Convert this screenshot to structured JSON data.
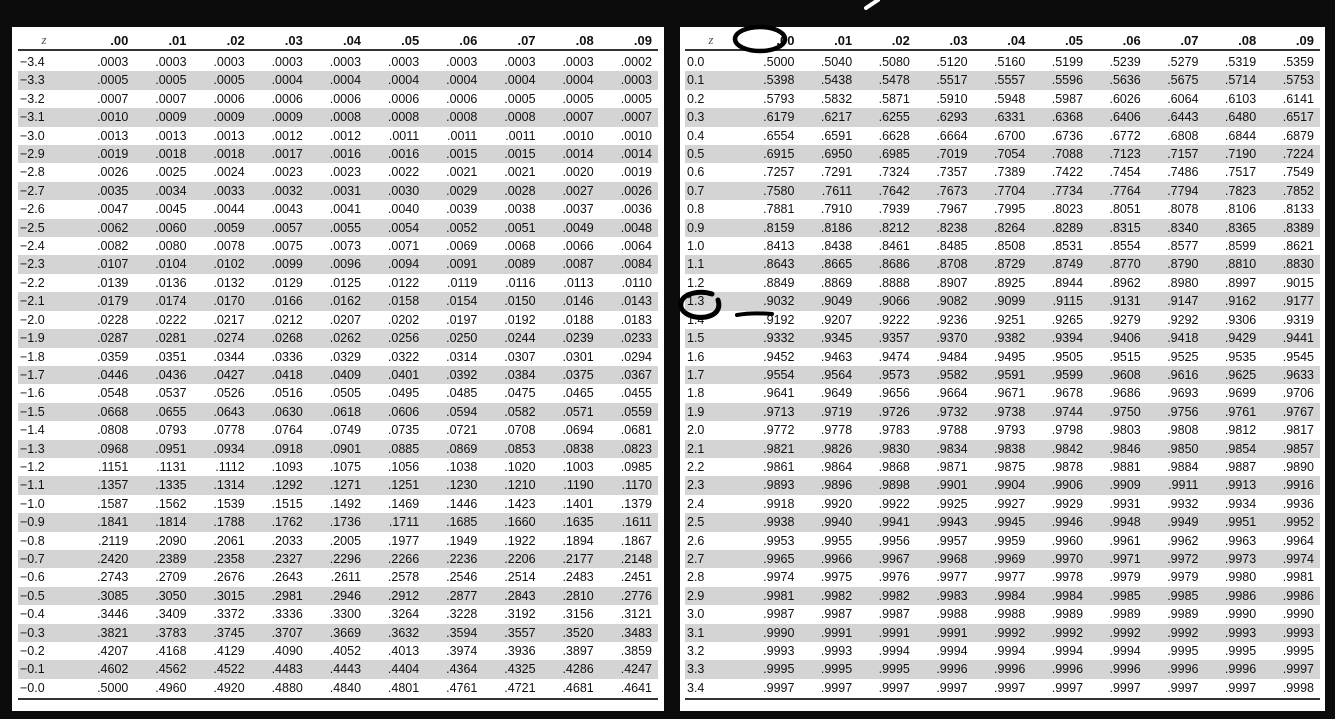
{
  "columns": [
    "z",
    ".00",
    ".01",
    ".02",
    ".03",
    ".04",
    ".05",
    ".06",
    ".07",
    ".08",
    ".09"
  ],
  "negative_table": [
    [
      "−3.4",
      ".0003",
      ".0003",
      ".0003",
      ".0003",
      ".0003",
      ".0003",
      ".0003",
      ".0003",
      ".0003",
      ".0002"
    ],
    [
      "−3.3",
      ".0005",
      ".0005",
      ".0005",
      ".0004",
      ".0004",
      ".0004",
      ".0004",
      ".0004",
      ".0004",
      ".0003"
    ],
    [
      "−3.2",
      ".0007",
      ".0007",
      ".0006",
      ".0006",
      ".0006",
      ".0006",
      ".0006",
      ".0005",
      ".0005",
      ".0005"
    ],
    [
      "−3.1",
      ".0010",
      ".0009",
      ".0009",
      ".0009",
      ".0008",
      ".0008",
      ".0008",
      ".0008",
      ".0007",
      ".0007"
    ],
    [
      "−3.0",
      ".0013",
      ".0013",
      ".0013",
      ".0012",
      ".0012",
      ".0011",
      ".0011",
      ".0011",
      ".0010",
      ".0010"
    ],
    [
      "−2.9",
      ".0019",
      ".0018",
      ".0018",
      ".0017",
      ".0016",
      ".0016",
      ".0015",
      ".0015",
      ".0014",
      ".0014"
    ],
    [
      "−2.8",
      ".0026",
      ".0025",
      ".0024",
      ".0023",
      ".0023",
      ".0022",
      ".0021",
      ".0021",
      ".0020",
      ".0019"
    ],
    [
      "−2.7",
      ".0035",
      ".0034",
      ".0033",
      ".0032",
      ".0031",
      ".0030",
      ".0029",
      ".0028",
      ".0027",
      ".0026"
    ],
    [
      "−2.6",
      ".0047",
      ".0045",
      ".0044",
      ".0043",
      ".0041",
      ".0040",
      ".0039",
      ".0038",
      ".0037",
      ".0036"
    ],
    [
      "−2.5",
      ".0062",
      ".0060",
      ".0059",
      ".0057",
      ".0055",
      ".0054",
      ".0052",
      ".0051",
      ".0049",
      ".0048"
    ],
    [
      "−2.4",
      ".0082",
      ".0080",
      ".0078",
      ".0075",
      ".0073",
      ".0071",
      ".0069",
      ".0068",
      ".0066",
      ".0064"
    ],
    [
      "−2.3",
      ".0107",
      ".0104",
      ".0102",
      ".0099",
      ".0096",
      ".0094",
      ".0091",
      ".0089",
      ".0087",
      ".0084"
    ],
    [
      "−2.2",
      ".0139",
      ".0136",
      ".0132",
      ".0129",
      ".0125",
      ".0122",
      ".0119",
      ".0116",
      ".0113",
      ".0110"
    ],
    [
      "−2.1",
      ".0179",
      ".0174",
      ".0170",
      ".0166",
      ".0162",
      ".0158",
      ".0154",
      ".0150",
      ".0146",
      ".0143"
    ],
    [
      "−2.0",
      ".0228",
      ".0222",
      ".0217",
      ".0212",
      ".0207",
      ".0202",
      ".0197",
      ".0192",
      ".0188",
      ".0183"
    ],
    [
      "−1.9",
      ".0287",
      ".0281",
      ".0274",
      ".0268",
      ".0262",
      ".0256",
      ".0250",
      ".0244",
      ".0239",
      ".0233"
    ],
    [
      "−1.8",
      ".0359",
      ".0351",
      ".0344",
      ".0336",
      ".0329",
      ".0322",
      ".0314",
      ".0307",
      ".0301",
      ".0294"
    ],
    [
      "−1.7",
      ".0446",
      ".0436",
      ".0427",
      ".0418",
      ".0409",
      ".0401",
      ".0392",
      ".0384",
      ".0375",
      ".0367"
    ],
    [
      "−1.6",
      ".0548",
      ".0537",
      ".0526",
      ".0516",
      ".0505",
      ".0495",
      ".0485",
      ".0475",
      ".0465",
      ".0455"
    ],
    [
      "−1.5",
      ".0668",
      ".0655",
      ".0643",
      ".0630",
      ".0618",
      ".0606",
      ".0594",
      ".0582",
      ".0571",
      ".0559"
    ],
    [
      "−1.4",
      ".0808",
      ".0793",
      ".0778",
      ".0764",
      ".0749",
      ".0735",
      ".0721",
      ".0708",
      ".0694",
      ".0681"
    ],
    [
      "−1.3",
      ".0968",
      ".0951",
      ".0934",
      ".0918",
      ".0901",
      ".0885",
      ".0869",
      ".0853",
      ".0838",
      ".0823"
    ],
    [
      "−1.2",
      ".1151",
      ".1131",
      ".1112",
      ".1093",
      ".1075",
      ".1056",
      ".1038",
      ".1020",
      ".1003",
      ".0985"
    ],
    [
      "−1.1",
      ".1357",
      ".1335",
      ".1314",
      ".1292",
      ".1271",
      ".1251",
      ".1230",
      ".1210",
      ".1190",
      ".1170"
    ],
    [
      "−1.0",
      ".1587",
      ".1562",
      ".1539",
      ".1515",
      ".1492",
      ".1469",
      ".1446",
      ".1423",
      ".1401",
      ".1379"
    ],
    [
      "−0.9",
      ".1841",
      ".1814",
      ".1788",
      ".1762",
      ".1736",
      ".1711",
      ".1685",
      ".1660",
      ".1635",
      ".1611"
    ],
    [
      "−0.8",
      ".2119",
      ".2090",
      ".2061",
      ".2033",
      ".2005",
      ".1977",
      ".1949",
      ".1922",
      ".1894",
      ".1867"
    ],
    [
      "−0.7",
      ".2420",
      ".2389",
      ".2358",
      ".2327",
      ".2296",
      ".2266",
      ".2236",
      ".2206",
      ".2177",
      ".2148"
    ],
    [
      "−0.6",
      ".2743",
      ".2709",
      ".2676",
      ".2643",
      ".2611",
      ".2578",
      ".2546",
      ".2514",
      ".2483",
      ".2451"
    ],
    [
      "−0.5",
      ".3085",
      ".3050",
      ".3015",
      ".2981",
      ".2946",
      ".2912",
      ".2877",
      ".2843",
      ".2810",
      ".2776"
    ],
    [
      "−0.4",
      ".3446",
      ".3409",
      ".3372",
      ".3336",
      ".3300",
      ".3264",
      ".3228",
      ".3192",
      ".3156",
      ".3121"
    ],
    [
      "−0.3",
      ".3821",
      ".3783",
      ".3745",
      ".3707",
      ".3669",
      ".3632",
      ".3594",
      ".3557",
      ".3520",
      ".3483"
    ],
    [
      "−0.2",
      ".4207",
      ".4168",
      ".4129",
      ".4090",
      ".4052",
      ".4013",
      ".3974",
      ".3936",
      ".3897",
      ".3859"
    ],
    [
      "−0.1",
      ".4602",
      ".4562",
      ".4522",
      ".4483",
      ".4443",
      ".4404",
      ".4364",
      ".4325",
      ".4286",
      ".4247"
    ],
    [
      "−0.0",
      ".5000",
      ".4960",
      ".4920",
      ".4880",
      ".4840",
      ".4801",
      ".4761",
      ".4721",
      ".4681",
      ".4641"
    ]
  ],
  "positive_table": [
    [
      "0.0",
      ".5000",
      ".5040",
      ".5080",
      ".5120",
      ".5160",
      ".5199",
      ".5239",
      ".5279",
      ".5319",
      ".5359"
    ],
    [
      "0.1",
      ".5398",
      ".5438",
      ".5478",
      ".5517",
      ".5557",
      ".5596",
      ".5636",
      ".5675",
      ".5714",
      ".5753"
    ],
    [
      "0.2",
      ".5793",
      ".5832",
      ".5871",
      ".5910",
      ".5948",
      ".5987",
      ".6026",
      ".6064",
      ".6103",
      ".6141"
    ],
    [
      "0.3",
      ".6179",
      ".6217",
      ".6255",
      ".6293",
      ".6331",
      ".6368",
      ".6406",
      ".6443",
      ".6480",
      ".6517"
    ],
    [
      "0.4",
      ".6554",
      ".6591",
      ".6628",
      ".6664",
      ".6700",
      ".6736",
      ".6772",
      ".6808",
      ".6844",
      ".6879"
    ],
    [
      "0.5",
      ".6915",
      ".6950",
      ".6985",
      ".7019",
      ".7054",
      ".7088",
      ".7123",
      ".7157",
      ".7190",
      ".7224"
    ],
    [
      "0.6",
      ".7257",
      ".7291",
      ".7324",
      ".7357",
      ".7389",
      ".7422",
      ".7454",
      ".7486",
      ".7517",
      ".7549"
    ],
    [
      "0.7",
      ".7580",
      ".7611",
      ".7642",
      ".7673",
      ".7704",
      ".7734",
      ".7764",
      ".7794",
      ".7823",
      ".7852"
    ],
    [
      "0.8",
      ".7881",
      ".7910",
      ".7939",
      ".7967",
      ".7995",
      ".8023",
      ".8051",
      ".8078",
      ".8106",
      ".8133"
    ],
    [
      "0.9",
      ".8159",
      ".8186",
      ".8212",
      ".8238",
      ".8264",
      ".8289",
      ".8315",
      ".8340",
      ".8365",
      ".8389"
    ],
    [
      "1.0",
      ".8413",
      ".8438",
      ".8461",
      ".8485",
      ".8508",
      ".8531",
      ".8554",
      ".8577",
      ".8599",
      ".8621"
    ],
    [
      "1.1",
      ".8643",
      ".8665",
      ".8686",
      ".8708",
      ".8729",
      ".8749",
      ".8770",
      ".8790",
      ".8810",
      ".8830"
    ],
    [
      "1.2",
      ".8849",
      ".8869",
      ".8888",
      ".8907",
      ".8925",
      ".8944",
      ".8962",
      ".8980",
      ".8997",
      ".9015"
    ],
    [
      "1.3",
      ".9032",
      ".9049",
      ".9066",
      ".9082",
      ".9099",
      ".9115",
      ".9131",
      ".9147",
      ".9162",
      ".9177"
    ],
    [
      "1.4",
      ".9192",
      ".9207",
      ".9222",
      ".9236",
      ".9251",
      ".9265",
      ".9279",
      ".9292",
      ".9306",
      ".9319"
    ],
    [
      "1.5",
      ".9332",
      ".9345",
      ".9357",
      ".9370",
      ".9382",
      ".9394",
      ".9406",
      ".9418",
      ".9429",
      ".9441"
    ],
    [
      "1.6",
      ".9452",
      ".9463",
      ".9474",
      ".9484",
      ".9495",
      ".9505",
      ".9515",
      ".9525",
      ".9535",
      ".9545"
    ],
    [
      "1.7",
      ".9554",
      ".9564",
      ".9573",
      ".9582",
      ".9591",
      ".9599",
      ".9608",
      ".9616",
      ".9625",
      ".9633"
    ],
    [
      "1.8",
      ".9641",
      ".9649",
      ".9656",
      ".9664",
      ".9671",
      ".9678",
      ".9686",
      ".9693",
      ".9699",
      ".9706"
    ],
    [
      "1.9",
      ".9713",
      ".9719",
      ".9726",
      ".9732",
      ".9738",
      ".9744",
      ".9750",
      ".9756",
      ".9761",
      ".9767"
    ],
    [
      "2.0",
      ".9772",
      ".9778",
      ".9783",
      ".9788",
      ".9793",
      ".9798",
      ".9803",
      ".9808",
      ".9812",
      ".9817"
    ],
    [
      "2.1",
      ".9821",
      ".9826",
      ".9830",
      ".9834",
      ".9838",
      ".9842",
      ".9846",
      ".9850",
      ".9854",
      ".9857"
    ],
    [
      "2.2",
      ".9861",
      ".9864",
      ".9868",
      ".9871",
      ".9875",
      ".9878",
      ".9881",
      ".9884",
      ".9887",
      ".9890"
    ],
    [
      "2.3",
      ".9893",
      ".9896",
      ".9898",
      ".9901",
      ".9904",
      ".9906",
      ".9909",
      ".9911",
      ".9913",
      ".9916"
    ],
    [
      "2.4",
      ".9918",
      ".9920",
      ".9922",
      ".9925",
      ".9927",
      ".9929",
      ".9931",
      ".9932",
      ".9934",
      ".9936"
    ],
    [
      "2.5",
      ".9938",
      ".9940",
      ".9941",
      ".9943",
      ".9945",
      ".9946",
      ".9948",
      ".9949",
      ".9951",
      ".9952"
    ],
    [
      "2.6",
      ".9953",
      ".9955",
      ".9956",
      ".9957",
      ".9959",
      ".9960",
      ".9961",
      ".9962",
      ".9963",
      ".9964"
    ],
    [
      "2.7",
      ".9965",
      ".9966",
      ".9967",
      ".9968",
      ".9969",
      ".9970",
      ".9971",
      ".9972",
      ".9973",
      ".9974"
    ],
    [
      "2.8",
      ".9974",
      ".9975",
      ".9976",
      ".9977",
      ".9977",
      ".9978",
      ".9979",
      ".9979",
      ".9980",
      ".9981"
    ],
    [
      "2.9",
      ".9981",
      ".9982",
      ".9982",
      ".9983",
      ".9984",
      ".9984",
      ".9985",
      ".9985",
      ".9986",
      ".9986"
    ],
    [
      "3.0",
      ".9987",
      ".9987",
      ".9987",
      ".9988",
      ".9988",
      ".9989",
      ".9989",
      ".9989",
      ".9990",
      ".9990"
    ],
    [
      "3.1",
      ".9990",
      ".9991",
      ".9991",
      ".9991",
      ".9992",
      ".9992",
      ".9992",
      ".9992",
      ".9993",
      ".9993"
    ],
    [
      "3.2",
      ".9993",
      ".9993",
      ".9994",
      ".9994",
      ".9994",
      ".9994",
      ".9994",
      ".9995",
      ".9995",
      ".9995"
    ],
    [
      "3.3",
      ".9995",
      ".9995",
      ".9995",
      ".9996",
      ".9996",
      ".9996",
      ".9996",
      ".9996",
      ".9996",
      ".9997"
    ],
    [
      "3.4",
      ".9997",
      ".9997",
      ".9997",
      ".9997",
      ".9997",
      ".9997",
      ".9997",
      ".9997",
      ".9997",
      ".9998"
    ]
  ],
  "annotations": {
    "ink_color": "#000000",
    "circled_column": ".00",
    "circled_row": "1.3",
    "underlined_value": ".9032"
  }
}
